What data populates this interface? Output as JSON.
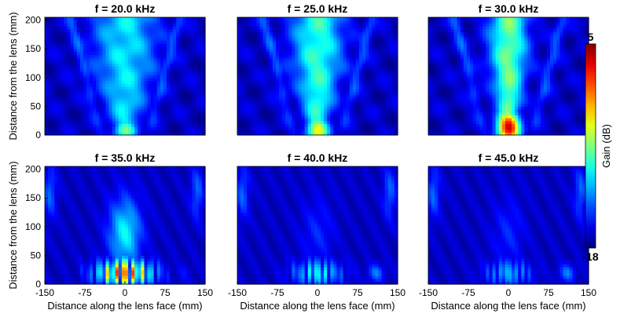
{
  "chart_data": {
    "type": "heatmap",
    "panels": [
      {
        "title": "f = 20.0 kHz",
        "frequency_khz": 20.0,
        "focal_spot": {
          "x_mm": 0,
          "y_mm": 10,
          "peak_gain_db": -7
        }
      },
      {
        "title": "f = 25.0 kHz",
        "frequency_khz": 25.0,
        "focal_spot": {
          "x_mm": 0,
          "y_mm": 10,
          "peak_gain_db": -4
        }
      },
      {
        "title": "f = 30.0 kHz",
        "frequency_khz": 30.0,
        "focal_spot": {
          "x_mm": 0,
          "y_mm": 15,
          "peak_gain_db": 3
        }
      },
      {
        "title": "f = 35.0 kHz",
        "frequency_khz": 35.0,
        "focal_spot": {
          "x_mm": 0,
          "y_mm": 20,
          "peak_gain_db": 4
        }
      },
      {
        "title": "f = 40.0 kHz",
        "frequency_khz": 40.0,
        "focal_spot": {
          "x_mm": 0,
          "y_mm": 20,
          "peak_gain_db": -8
        }
      },
      {
        "title": "f = 45.0 kHz",
        "frequency_khz": 45.0,
        "focal_spot": {
          "x_mm": 0,
          "y_mm": 20,
          "peak_gain_db": -10
        }
      }
    ],
    "xlabel": "Distance along the lens face (mm)",
    "ylabel": "Distance from the lens (mm)",
    "xlim": [
      -150,
      150
    ],
    "ylim": [
      0,
      205
    ],
    "xticks": [
      "-150",
      "-75",
      "0",
      "75",
      "150"
    ],
    "yticks": [
      "0",
      "50",
      "100",
      "150",
      "200"
    ],
    "colorbar": {
      "label": "Gain (dB)",
      "min": -18,
      "max": 5,
      "min_label": "-18",
      "max_label": "5",
      "colormap": "jet"
    },
    "grid": false,
    "layout": "2x3"
  }
}
